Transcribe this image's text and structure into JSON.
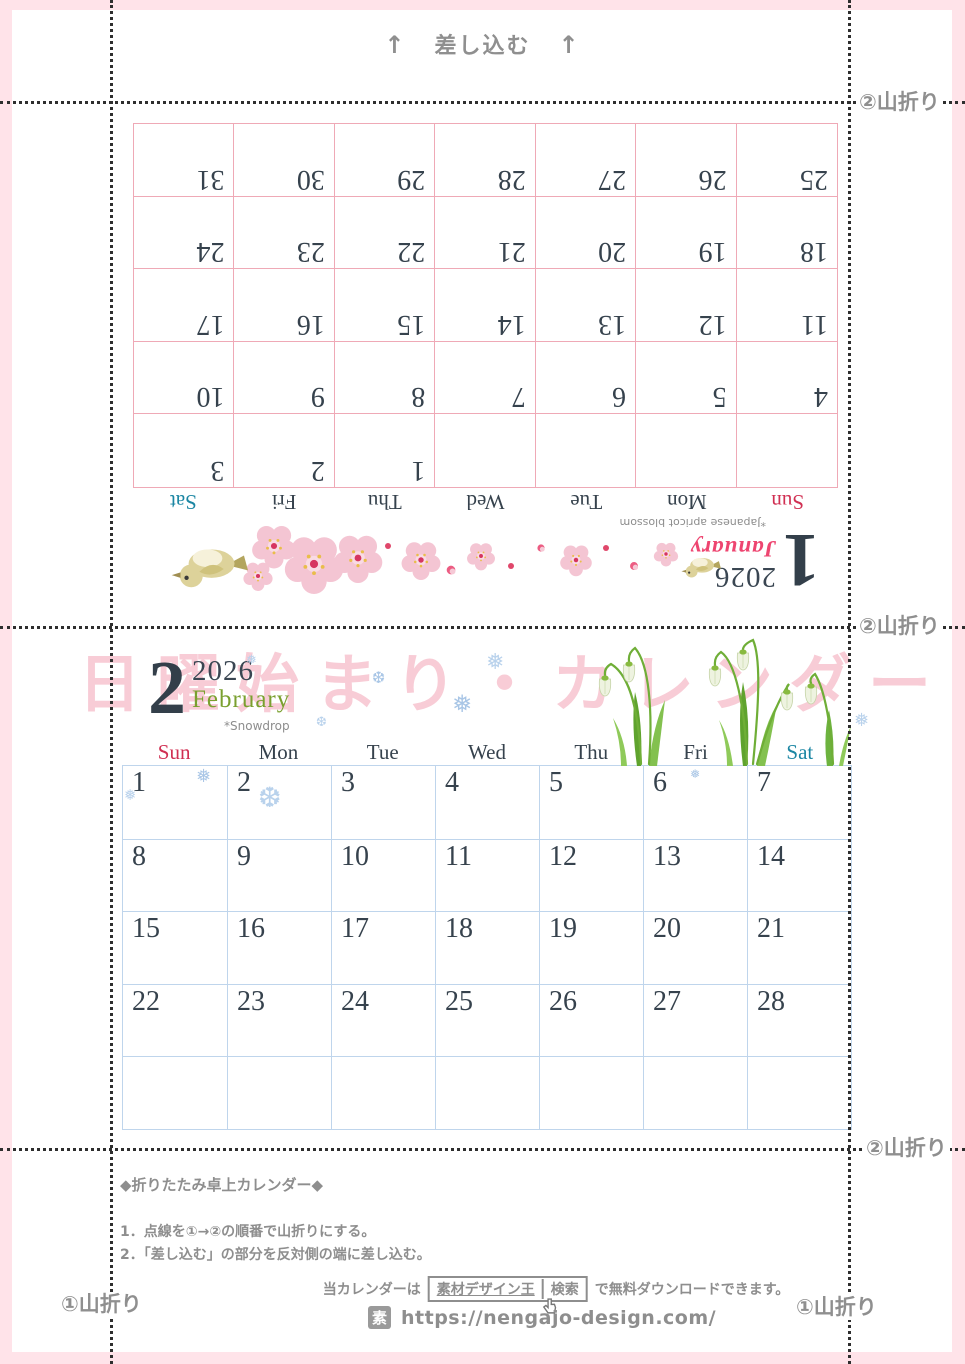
{
  "page": {
    "insert_arrow": "↑",
    "insert_label": "差し込む",
    "fold_mountain_2": "②山折り",
    "fold_mountain_1": "①山折り",
    "watermark": "日曜始まり・カレンダー"
  },
  "calendars": {
    "january": {
      "month_num": "1",
      "year": "2026",
      "month_name": "January",
      "flower_note": "*Japanese apricot blossom",
      "weekdays": [
        "Sun",
        "Mon",
        "Tue",
        "Wed",
        "Thu",
        "Fri",
        "Sat"
      ],
      "weeks": [
        [
          "",
          "",
          "",
          "",
          "1",
          "2",
          "3"
        ],
        [
          "4",
          "5",
          "6",
          "7",
          "8",
          "9",
          "10"
        ],
        [
          "11",
          "12",
          "13",
          "14",
          "15",
          "16",
          "17"
        ],
        [
          "18",
          "19",
          "20",
          "21",
          "22",
          "23",
          "24"
        ],
        [
          "25",
          "26",
          "27",
          "28",
          "29",
          "30",
          "31"
        ]
      ],
      "holidays": [
        "1",
        "12"
      ]
    },
    "february": {
      "month_num": "2",
      "year": "2026",
      "month_name": "February",
      "flower_note": "*Snowdrop",
      "weekdays": [
        "Sun",
        "Mon",
        "Tue",
        "Wed",
        "Thu",
        "Fri",
        "Sat"
      ],
      "weeks": [
        [
          "1",
          "2",
          "3",
          "4",
          "5",
          "6",
          "7"
        ],
        [
          "8",
          "9",
          "10",
          "11",
          "12",
          "13",
          "14"
        ],
        [
          "15",
          "16",
          "17",
          "18",
          "19",
          "20",
          "21"
        ],
        [
          "22",
          "23",
          "24",
          "25",
          "26",
          "27",
          "28"
        ],
        [
          "",
          "",
          "",
          "",
          "",
          "",
          ""
        ]
      ],
      "holidays": [
        "11",
        "23"
      ]
    }
  },
  "instructions": {
    "heading": "◆折りたたみ卓上カレンダー◆",
    "steps": [
      "1．点線を①→②の順番で山折りにする。",
      "2．「差し込む」の部分を反対側の端に差し込む。"
    ]
  },
  "footer": {
    "notice_prefix": "当カレンダーは",
    "search_keyword": "素材デザイン王",
    "search_label": "検索",
    "notice_suffix": "で無料ダウンロードできます。",
    "site_icon": "素",
    "url": "https://nengajo-design.com/"
  },
  "colors": {
    "sunday_holiday": "#d02f52",
    "saturday": "#1b86a3",
    "weekday_text": "#36424d",
    "january_grid_border": "#efa9b6",
    "february_grid_border": "#bfd5ec",
    "frame_pink": "#ffe3e9",
    "watermark_pink": "#f8ccd6",
    "guide_gray": "#8e8e8e",
    "january_month_name": "#ee4570",
    "february_month_name": "#7aa02f"
  }
}
